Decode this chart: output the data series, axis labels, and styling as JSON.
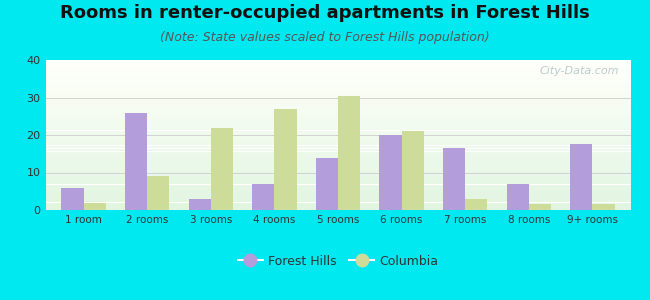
{
  "title": "Rooms in renter-occupied apartments in Forest Hills",
  "subtitle": "(Note: State values scaled to Forest Hills population)",
  "categories": [
    "1 room",
    "2 rooms",
    "3 rooms",
    "4 rooms",
    "5 rooms",
    "6 rooms",
    "7 rooms",
    "8 rooms",
    "9+ rooms"
  ],
  "forest_hills": [
    6,
    26,
    3,
    7,
    14,
    20,
    16.5,
    7,
    17.5
  ],
  "columbia": [
    2,
    9,
    22,
    27,
    30.5,
    21,
    3,
    1.5,
    1.5
  ],
  "forest_hills_color": "#b39ddb",
  "columbia_color": "#cddc99",
  "background_outer": "#00e8f0",
  "ylim": [
    0,
    40
  ],
  "yticks": [
    0,
    10,
    20,
    30,
    40
  ],
  "bar_width": 0.35,
  "title_fontsize": 13,
  "subtitle_fontsize": 9,
  "watermark": "City-Data.com",
  "legend_labels": [
    "Forest Hills",
    "Columbia"
  ]
}
